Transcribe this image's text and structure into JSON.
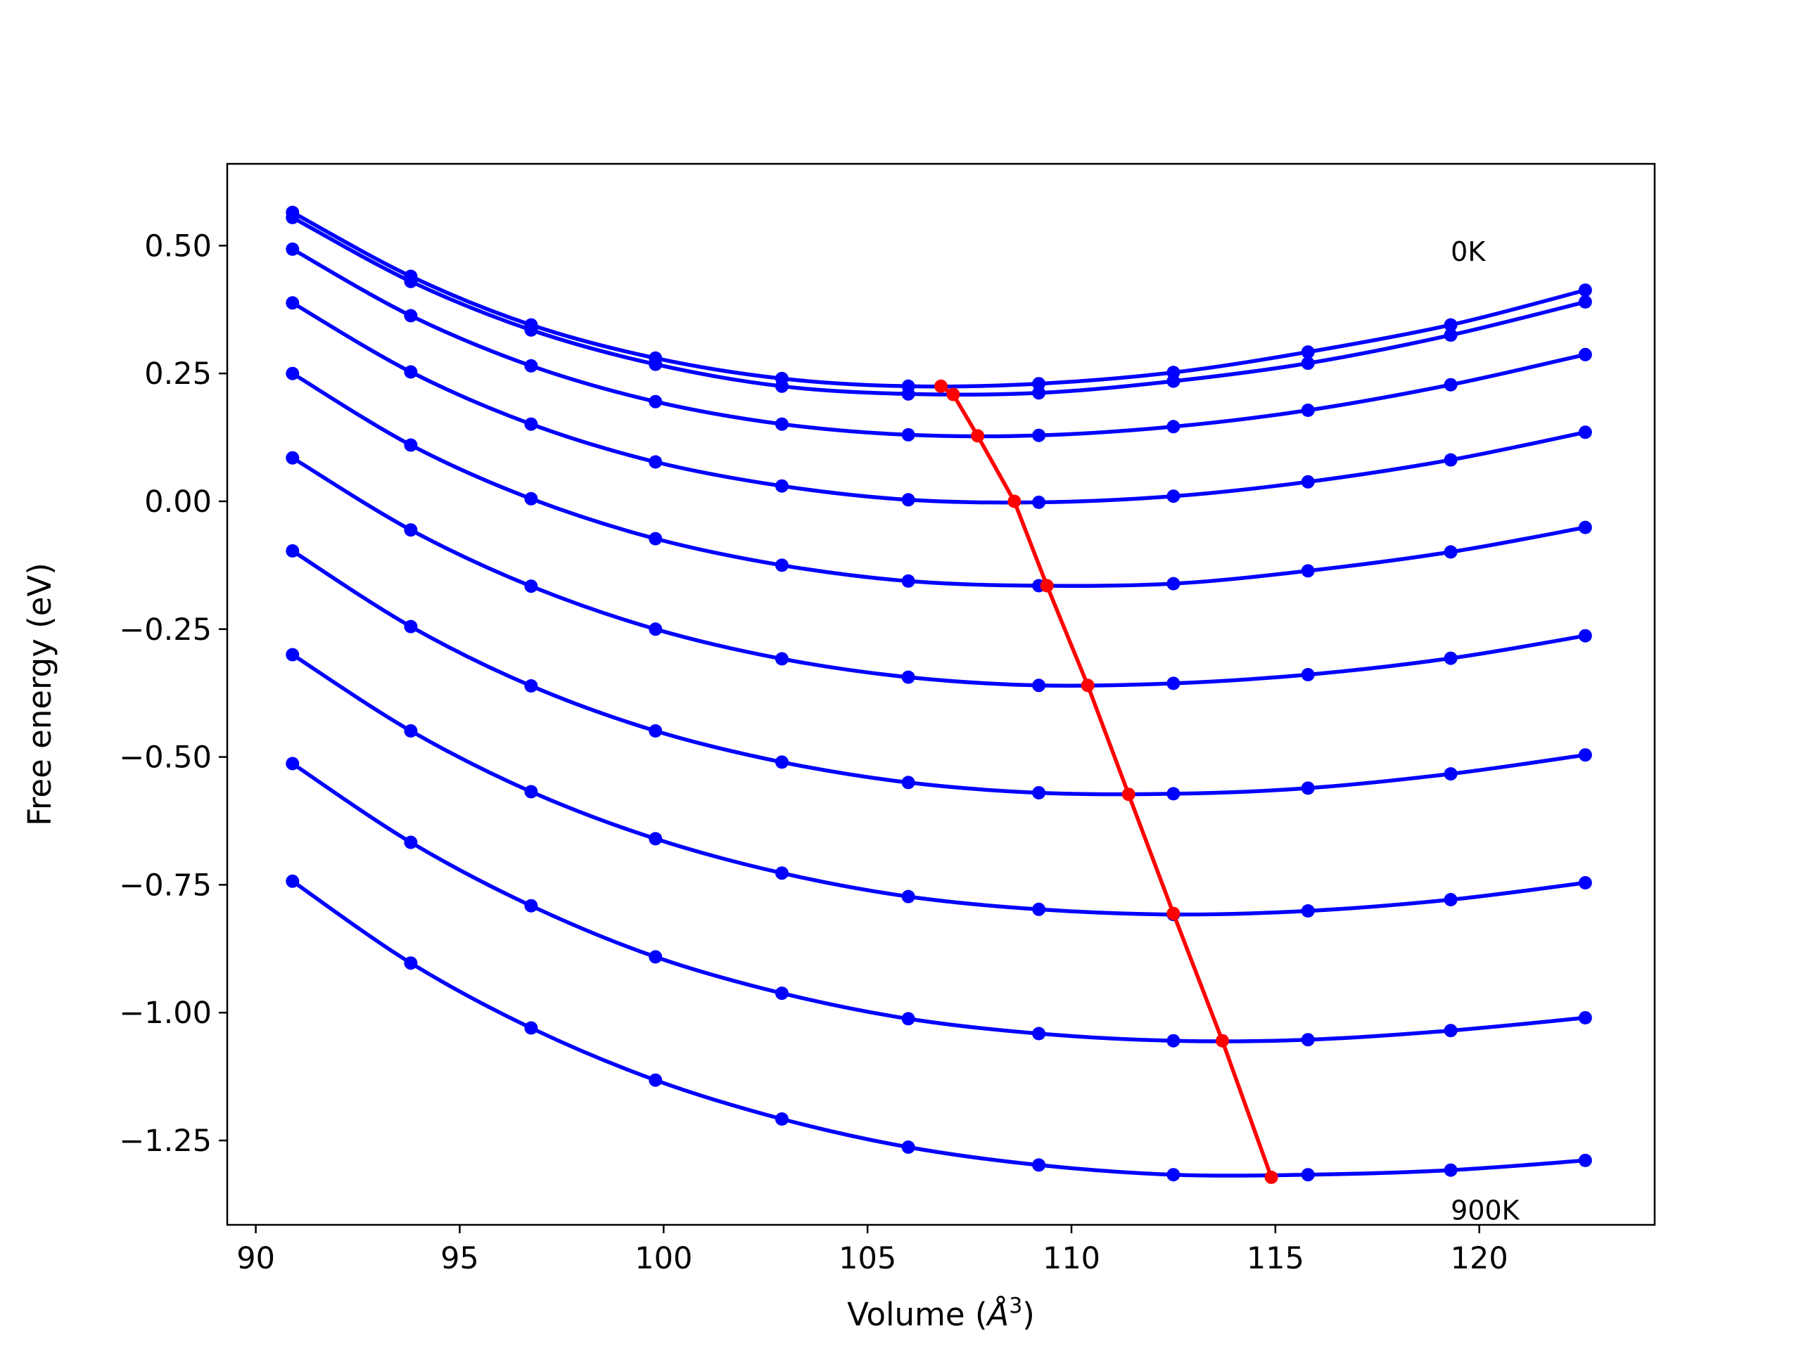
{
  "chart_data": {
    "type": "line",
    "title": "",
    "xlabel": {
      "prefix": "Volume (",
      "symbol": "Å",
      "sup": "3",
      "suffix": ")"
    },
    "ylabel": "Free energy (eV)",
    "xlim": [
      89.3,
      124.3
    ],
    "ylim": [
      -1.415,
      0.66
    ],
    "xticks": [
      90,
      95,
      100,
      105,
      110,
      115,
      120
    ],
    "xtick_labels": [
      "90",
      "95",
      "100",
      "105",
      "110",
      "115",
      "120"
    ],
    "yticks": [
      0.5,
      0.25,
      0.0,
      -0.25,
      -0.5,
      -0.75,
      -1.0,
      -1.25
    ],
    "ytick_labels": [
      "0.50",
      "0.25",
      "0.00",
      "−0.25",
      "−0.50",
      "−0.75",
      "−1.00",
      "−1.25"
    ],
    "grid": false,
    "legend": "none",
    "annotations": [
      {
        "text": "0K",
        "x": 119.3,
        "y": 0.47
      },
      {
        "text": "900K",
        "x": 119.3,
        "y": -1.405
      }
    ],
    "x": [
      90.9,
      93.8,
      96.75,
      99.8,
      102.9,
      106.0,
      109.2,
      112.5,
      115.8,
      119.3,
      122.6
    ],
    "series": [
      {
        "values": [
          0.565,
          0.44,
          0.345,
          0.28,
          0.24,
          0.225,
          0.23,
          0.252,
          0.292,
          0.345,
          0.413
        ]
      },
      {
        "values": [
          0.555,
          0.43,
          0.335,
          0.268,
          0.225,
          0.21,
          0.212,
          0.235,
          0.27,
          0.325,
          0.39
        ]
      },
      {
        "values": [
          0.493,
          0.363,
          0.265,
          0.195,
          0.151,
          0.13,
          0.129,
          0.146,
          0.178,
          0.228,
          0.287
        ]
      },
      {
        "values": [
          0.388,
          0.253,
          0.151,
          0.077,
          0.03,
          0.003,
          -0.002,
          0.01,
          0.038,
          0.081,
          0.135
        ]
      },
      {
        "values": [
          0.25,
          0.11,
          0.005,
          -0.073,
          -0.125,
          -0.156,
          -0.165,
          -0.161,
          -0.136,
          -0.099,
          -0.051
        ]
      },
      {
        "values": [
          0.085,
          -0.056,
          -0.166,
          -0.25,
          -0.308,
          -0.344,
          -0.36,
          -0.356,
          -0.339,
          -0.307,
          -0.263
        ]
      },
      {
        "values": [
          -0.097,
          -0.245,
          -0.361,
          -0.449,
          -0.51,
          -0.55,
          -0.57,
          -0.572,
          -0.561,
          -0.533,
          -0.496
        ]
      },
      {
        "values": [
          -0.3,
          -0.449,
          -0.568,
          -0.66,
          -0.727,
          -0.773,
          -0.798,
          -0.808,
          -0.801,
          -0.779,
          -0.746
        ]
      },
      {
        "values": [
          -0.513,
          -0.667,
          -0.791,
          -0.891,
          -0.962,
          -1.012,
          -1.041,
          -1.055,
          -1.053,
          -1.035,
          -1.01
        ]
      },
      {
        "values": [
          -0.743,
          -0.903,
          -1.03,
          -1.132,
          -1.208,
          -1.263,
          -1.298,
          -1.317,
          -1.317,
          -1.308,
          -1.289
        ]
      }
    ],
    "minima_series": {
      "x": [
        106.8,
        107.1,
        107.7,
        108.6,
        109.4,
        110.4,
        111.4,
        112.5,
        113.7,
        114.9
      ],
      "y": [
        0.225,
        0.209,
        0.128,
        0.0,
        -0.165,
        -0.36,
        -0.573,
        -0.806,
        -1.055,
        -1.322
      ]
    },
    "colors": {
      "curves": "#0000ff",
      "minima": "#ff0000",
      "axes": "#000000"
    }
  }
}
